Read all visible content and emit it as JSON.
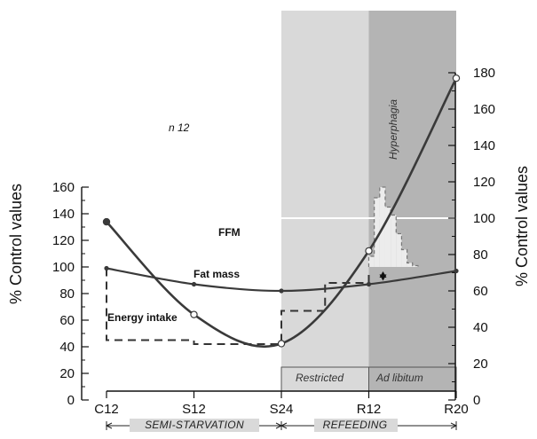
{
  "chart_data": {
    "type": "line",
    "x_categories": [
      "C12",
      "S12",
      "S24",
      "R12",
      "R20"
    ],
    "y_left_ticks": [
      "0",
      "20",
      "40",
      "60",
      "80",
      "100",
      "120",
      "140",
      "160"
    ],
    "y_right_ticks": [
      "0",
      "20",
      "40",
      "60",
      "80",
      "100",
      "120",
      "140",
      "160",
      "180"
    ],
    "y_left_label": "% Control values",
    "y_right_label": "% Control values",
    "ylim_left": [
      0,
      160
    ],
    "ylim_right": [
      0,
      180
    ],
    "annotation": "n 12",
    "series": [
      {
        "name": "FFM",
        "axis": "left",
        "x": [
          0,
          1,
          2,
          3,
          4
        ],
        "values": [
          99,
          87,
          82,
          87,
          97
        ]
      },
      {
        "name": "Fat mass",
        "axis": "right",
        "x": [
          0,
          1,
          2,
          3,
          4
        ],
        "values": [
          98,
          47,
          31,
          82,
          177
        ]
      },
      {
        "name": "Energy intake",
        "axis": "left",
        "style": "dashed-step",
        "x": [
          0,
          0.0,
          1,
          1,
          2,
          2,
          2.5,
          2.5,
          3,
          3
        ],
        "values": [
          99,
          45,
          45,
          42,
          42,
          67,
          67,
          88,
          88,
          97
        ]
      }
    ],
    "hyperphagia_histogram": {
      "label": "Hyperphagia",
      "x_start": 3,
      "x_step": 0.0625,
      "values": [
        108,
        152,
        160,
        145,
        139,
        125,
        113,
        103,
        101
      ]
    },
    "bands": [
      {
        "label": "Restricted",
        "from": 2,
        "to": 3
      },
      {
        "label": "Ad libitum",
        "from": 3,
        "to": 4
      }
    ],
    "phases": [
      {
        "label": "SEMI-STARVATION",
        "from": 0,
        "to": 2
      },
      {
        "label": "REFEEDING",
        "from": 2,
        "to": 4
      }
    ]
  }
}
